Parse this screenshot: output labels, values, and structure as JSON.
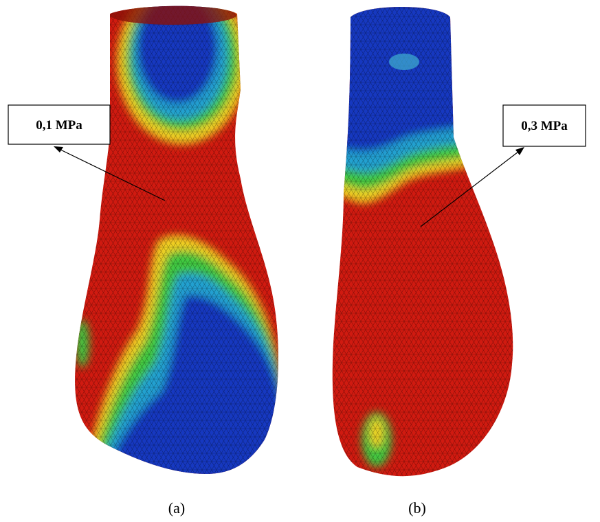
{
  "panels": [
    {
      "label": "0,1 MPa",
      "caption": "(a)"
    },
    {
      "label": "0,3 MPa",
      "caption": "(b)"
    }
  ]
}
